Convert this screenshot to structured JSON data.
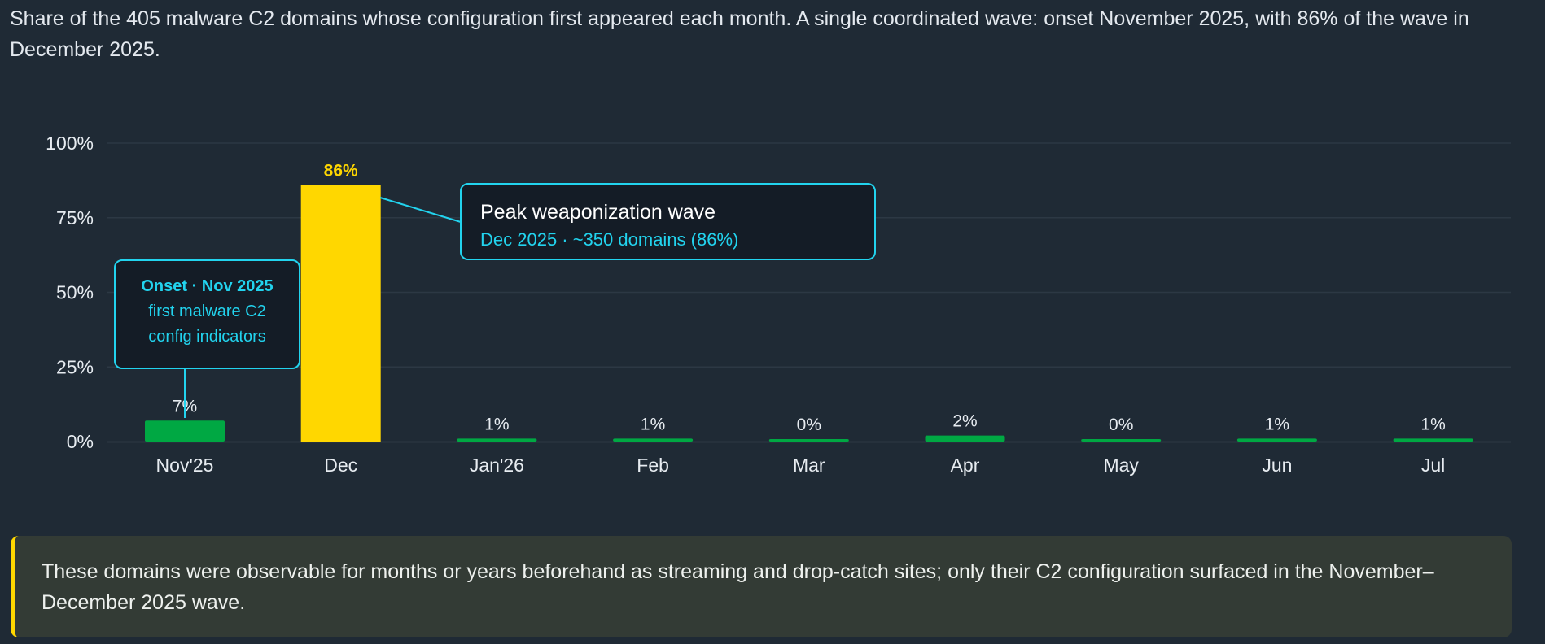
{
  "caption": "Share of the 405 malware C2 domains whose configuration first appeared each month. A single coordinated wave: onset November 2025, with 86% of the wave in December 2025.",
  "colors": {
    "background": "#1f2a35",
    "bar_default": "#00a843",
    "bar_peak": "#ffd700",
    "annotation": "#22d3ee",
    "gridline": "#2c3844"
  },
  "chart_data": {
    "type": "bar",
    "categories": [
      "Nov'25",
      "Dec",
      "Jan'26",
      "Feb",
      "Mar",
      "Apr",
      "May",
      "Jun",
      "Jul"
    ],
    "values": [
      7,
      86,
      1,
      1,
      0,
      2,
      0,
      1,
      1
    ],
    "value_labels": [
      "7%",
      "86%",
      "1%",
      "1%",
      "0%",
      "2%",
      "0%",
      "1%",
      "1%"
    ],
    "highlight_index": 1,
    "yticks": [
      "0%",
      "25%",
      "50%",
      "75%",
      "100%"
    ],
    "ylim": [
      0,
      100
    ],
    "grid": true
  },
  "annotations": {
    "onset": {
      "title": "Onset · Nov 2025",
      "line1": "first malware C2",
      "line2": "config indicators"
    },
    "peak": {
      "title": "Peak weaponization wave",
      "detail": "Dec 2025 · ~350 domains (86%)"
    }
  },
  "note": "These domains were observable for months or years beforehand as streaming and drop-catch sites; only their C2 configuration surfaced in the November–December 2025 wave."
}
